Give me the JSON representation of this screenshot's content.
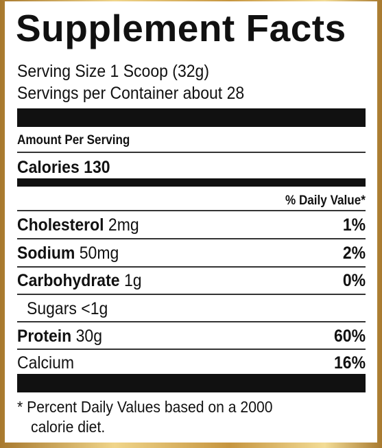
{
  "title": "Supplement Facts",
  "serving_size": "Serving Size 1 Scoop (32g)",
  "servings_per_container": "Servings per Container about 28",
  "amount_per_serving": "Amount Per Serving",
  "calories": {
    "label": "Calories",
    "value": 130
  },
  "daily_value_header": "% Daily Value*",
  "rows": [
    {
      "name": "Cholesterol",
      "amount": "2mg",
      "dv": "1%"
    },
    {
      "name": "Sodium",
      "amount": "50mg",
      "dv": "2%"
    },
    {
      "name": "Carbohydrate",
      "amount": "1g",
      "dv": "0%"
    },
    {
      "name": "Sugars",
      "amount": "<1g"
    },
    {
      "name": "Protein",
      "amount": "30g",
      "dv": "60%"
    },
    {
      "name": "Calcium",
      "dv": "16%"
    }
  ],
  "footnote": [
    "* Percent Daily Values based on a 2000",
    "calorie diet."
  ]
}
